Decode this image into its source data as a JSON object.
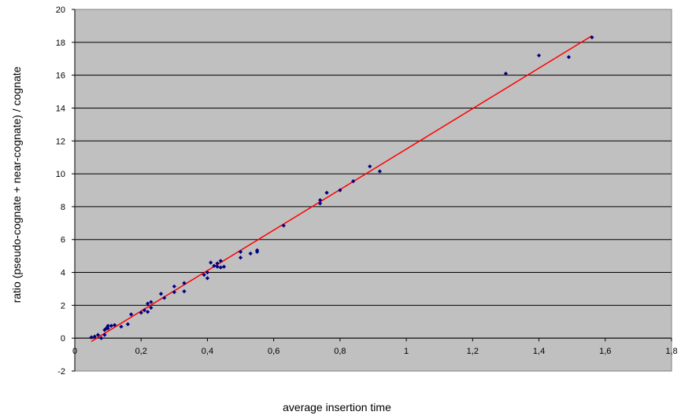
{
  "chart_data": {
    "type": "scatter",
    "title": "",
    "xlabel": "average insertion time",
    "ylabel": "ratio (pseudo-cognate + near-cognate) / cognate",
    "xlim": [
      0,
      1.8
    ],
    "ylim": [
      -2,
      20
    ],
    "x_ticks": [
      "0",
      "0,2",
      "0,4",
      "0,6",
      "0,8",
      "1",
      "1,2",
      "1,4",
      "1,6",
      "1,8"
    ],
    "y_ticks": [
      "-2",
      "0",
      "2",
      "4",
      "6",
      "8",
      "10",
      "12",
      "14",
      "16",
      "18",
      "20"
    ],
    "grid": "horizontal",
    "legend": "none",
    "colors": {
      "plot_background": "#c0c0c0",
      "points": "#000080",
      "trendline": "#ff0000",
      "gridlines": "#000000"
    },
    "series": [
      {
        "marker": "diamond",
        "points": [
          [
            0.05,
            0.05
          ],
          [
            0.06,
            0.1
          ],
          [
            0.07,
            0.2
          ],
          [
            0.08,
            0.0
          ],
          [
            0.09,
            0.2
          ],
          [
            0.09,
            0.5
          ],
          [
            0.095,
            0.6
          ],
          [
            0.1,
            0.6
          ],
          [
            0.1,
            0.75
          ],
          [
            0.11,
            0.75
          ],
          [
            0.12,
            0.8
          ],
          [
            0.14,
            0.7
          ],
          [
            0.16,
            0.85
          ],
          [
            0.17,
            1.45
          ],
          [
            0.2,
            1.55
          ],
          [
            0.21,
            1.7
          ],
          [
            0.22,
            2.1
          ],
          [
            0.22,
            1.6
          ],
          [
            0.23,
            2.2
          ],
          [
            0.23,
            1.85
          ],
          [
            0.26,
            2.7
          ],
          [
            0.27,
            2.45
          ],
          [
            0.3,
            3.15
          ],
          [
            0.3,
            2.8
          ],
          [
            0.33,
            3.35
          ],
          [
            0.33,
            2.85
          ],
          [
            0.39,
            3.85
          ],
          [
            0.4,
            3.65
          ],
          [
            0.4,
            4.0
          ],
          [
            0.41,
            4.6
          ],
          [
            0.42,
            4.4
          ],
          [
            0.43,
            4.35
          ],
          [
            0.43,
            4.55
          ],
          [
            0.44,
            4.7
          ],
          [
            0.44,
            4.3
          ],
          [
            0.45,
            4.35
          ],
          [
            0.5,
            5.25
          ],
          [
            0.5,
            4.9
          ],
          [
            0.53,
            5.15
          ],
          [
            0.55,
            5.25
          ],
          [
            0.55,
            5.35
          ],
          [
            0.63,
            6.85
          ],
          [
            0.74,
            8.2
          ],
          [
            0.74,
            8.4
          ],
          [
            0.76,
            8.85
          ],
          [
            0.8,
            9.0
          ],
          [
            0.84,
            9.55
          ],
          [
            0.89,
            10.45
          ],
          [
            0.92,
            10.15
          ],
          [
            1.3,
            16.1
          ],
          [
            1.4,
            17.2
          ],
          [
            1.49,
            17.1
          ],
          [
            1.56,
            18.3
          ]
        ]
      }
    ],
    "trendline": {
      "type": "linear",
      "x": [
        0.05,
        1.56
      ],
      "y": [
        -0.2,
        18.4
      ]
    }
  }
}
